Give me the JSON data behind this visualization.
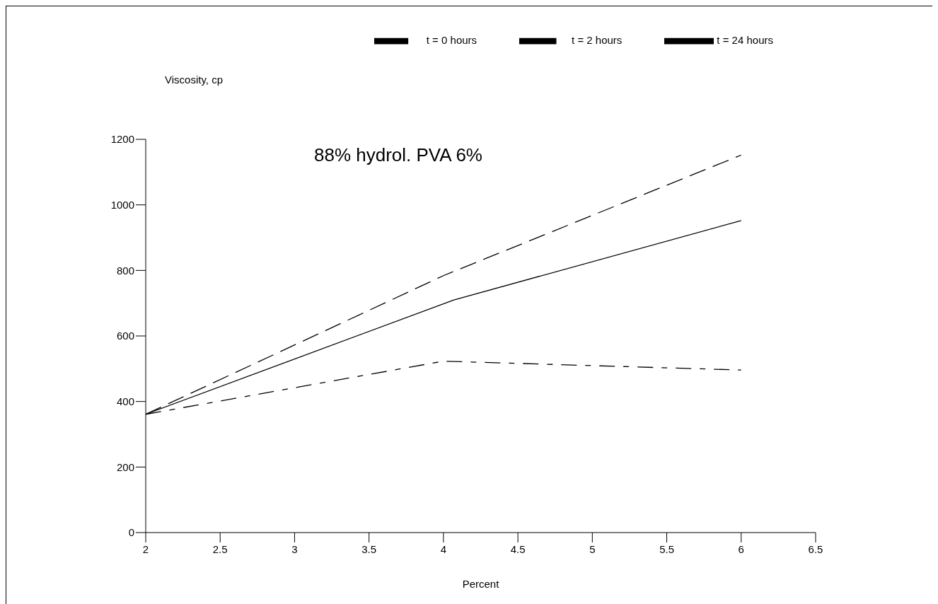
{
  "chart_data": {
    "type": "line",
    "xlabel": "Percent",
    "ylabel": "Viscosity, cp",
    "annotations": [
      "88% hydrol. PVA 6%"
    ],
    "xlim": [
      2,
      6.5
    ],
    "xticks": [
      2,
      2.5,
      3,
      3.5,
      4,
      4.5,
      5,
      5.5,
      6,
      6.5
    ],
    "ylim": [
      0,
      1200
    ],
    "yticks": [
      0,
      200,
      400,
      600,
      800,
      1000,
      1200
    ],
    "grid": false,
    "legend": "top",
    "marker": "none",
    "series": [
      {
        "name": "t = 0 hours",
        "color": "#000000",
        "line_style": "dashdot",
        "x": [
          2,
          4,
          6
        ],
        "values": [
          361,
          523,
          496
        ]
      },
      {
        "name": "t = 2 hours",
        "color": "#000000",
        "line_style": "dashed",
        "x": [
          2,
          4,
          6
        ],
        "values": [
          361,
          784,
          1152
        ]
      },
      {
        "name": "t = 24 hours",
        "color": "#000000",
        "line_style": "solid",
        "x": [
          2,
          4.07,
          6
        ],
        "values": [
          361,
          710,
          952
        ]
      }
    ]
  }
}
